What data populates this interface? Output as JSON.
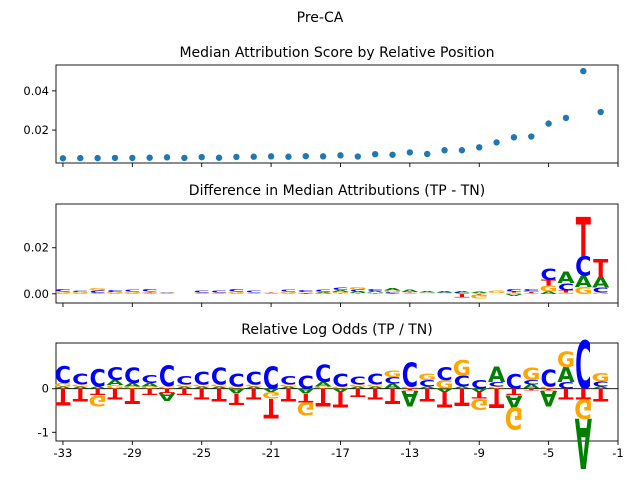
{
  "figure": {
    "suptitle": "Pre-CA"
  },
  "colors": {
    "A": "#008000",
    "C": "#0000ff",
    "G": "#ffa500",
    "T": "#ff0000",
    "point": "#1f77b4"
  },
  "chart_data": [
    {
      "type": "scatter",
      "title": "Median Attribution Score by Relative Position",
      "x": [
        -33,
        -32,
        -31,
        -30,
        -29,
        -28,
        -27,
        -26,
        -25,
        -24,
        -23,
        -22,
        -21,
        -20,
        -19,
        -18,
        -17,
        -16,
        -15,
        -14,
        -13,
        -12,
        -11,
        -10,
        -9,
        -8,
        -7,
        -6,
        -5,
        -4,
        -3,
        -2
      ],
      "values": [
        0.0056,
        0.0057,
        0.0057,
        0.0058,
        0.0058,
        0.0059,
        0.0061,
        0.0058,
        0.0062,
        0.0059,
        0.0063,
        0.0064,
        0.0066,
        0.0064,
        0.0067,
        0.0066,
        0.0071,
        0.0065,
        0.0077,
        0.0074,
        0.0086,
        0.0078,
        0.0097,
        0.0097,
        0.0112,
        0.0137,
        0.0163,
        0.0167,
        0.0233,
        0.0262,
        0.0501,
        0.0292
      ],
      "yticks": [
        0.02,
        0.04
      ],
      "ylim": [
        0.0032,
        0.0532
      ],
      "xlim": [
        -33.4,
        -1
      ]
    },
    {
      "type": "bar",
      "subtype": "sequence-logo",
      "title": "Difference in Median Attributions (TP - TN)",
      "positions": [
        -33,
        -32,
        -31,
        -30,
        -29,
        -28,
        -27,
        -26,
        -25,
        -24,
        -23,
        -22,
        -21,
        -20,
        -19,
        -18,
        -17,
        -16,
        -15,
        -14,
        -13,
        -12,
        -11,
        -10,
        -9,
        -8,
        -7,
        -6,
        -5,
        -4,
        -3,
        -2
      ],
      "series": [
        {
          "name": "A",
          "values": [
            0.0003,
            0.0003,
            0.0003,
            0.0003,
            0.0003,
            0.0003,
            0.0002,
            0.0001,
            0.0002,
            0.0002,
            0.0003,
            0.0003,
            0.0002,
            0.0003,
            0.0003,
            0.0004,
            0.0008,
            0.0008,
            0.0007,
            0.001,
            0.0012,
            0.0004,
            0.0006,
            0.0006,
            0.0004,
            0.0001,
            -0.0008,
            0.0003,
            0.001,
            0.005,
            0.005,
            0.0045
          ]
        },
        {
          "name": "C",
          "values": [
            0.001,
            0.0006,
            0.001,
            0.0008,
            0.0008,
            0.0011,
            0.0003,
            0.0001,
            0.0009,
            0.0009,
            0.001,
            0.0008,
            0.0001,
            0.0009,
            0.0008,
            0.0008,
            0.0011,
            0.0008,
            0.0008,
            0.0006,
            0.0003,
            0.0001,
            0.0003,
            0.0004,
            0.0003,
            0.0001,
            0.0012,
            0.0007,
            0.0052,
            0.0032,
            0.0085,
            0.0022
          ]
        },
        {
          "name": "G",
          "values": [
            0.0005,
            0.0004,
            0.0011,
            0.0004,
            0.0005,
            0.0003,
            0.0002,
            0.0001,
            0.0002,
            0.0002,
            0.0005,
            0.0001,
            0.0001,
            0.0005,
            0.0003,
            0.0005,
            0.0005,
            0.0011,
            0.0002,
            0.0006,
            0.0001,
            0.0003,
            0.0002,
            0.0002,
            -0.0018,
            0.001,
            0.0005,
            0.0006,
            0.0025,
            0.0005,
            0.003,
            0.0005
          ]
        },
        {
          "name": "T",
          "values": [
            0.0001,
            0.0001,
            0.0001,
            0.0001,
            0.0001,
            0.0003,
            0.0001,
            0.0001,
            0.0001,
            0.0001,
            0.0001,
            0.0001,
            0.0002,
            0.0001,
            0.0002,
            0.0001,
            0.0003,
            0.0003,
            0.0003,
            0.0002,
            0.0003,
            0.0001,
            0.0001,
            -0.0015,
            -0.0004,
            0.0001,
            0.0005,
            0.0004,
            0.0025,
            0.001,
            0.017,
            0.008
          ]
        }
      ],
      "yticks": [
        0.0,
        0.02
      ],
      "ylim": [
        -0.004,
        0.039
      ],
      "xlim": [
        -33.4,
        -1
      ]
    },
    {
      "type": "bar",
      "subtype": "sequence-logo",
      "title": "Relative Log Odds (TP / TN)",
      "positions": [
        -33,
        -32,
        -31,
        -30,
        -29,
        -28,
        -27,
        -26,
        -25,
        -24,
        -23,
        -22,
        -21,
        -20,
        -19,
        -18,
        -17,
        -16,
        -15,
        -14,
        -13,
        -12,
        -11,
        -10,
        -9,
        -8,
        -7,
        -6,
        -5,
        -4,
        -3,
        -2
      ],
      "series": [
        {
          "name": "A",
          "values": [
            0.05,
            0.05,
            0.05,
            0.12,
            0.08,
            0.08,
            -0.18,
            0.05,
            0.05,
            0.05,
            -0.12,
            0.05,
            -0.08,
            0.05,
            -0.12,
            0.1,
            -0.08,
            0.05,
            0.05,
            0.12,
            -0.35,
            0.05,
            -0.08,
            0.05,
            -0.08,
            0.35,
            -0.28,
            0.1,
            -0.35,
            0.35,
            -1.15,
            0.05
          ]
        },
        {
          "name": "C",
          "values": [
            0.38,
            0.25,
            0.4,
            0.3,
            0.35,
            0.18,
            0.48,
            0.2,
            0.3,
            0.38,
            0.3,
            0.3,
            0.5,
            0.2,
            0.3,
            0.4,
            0.3,
            0.18,
            0.25,
            0.15,
            0.55,
            0.15,
            0.3,
            0.25,
            0.2,
            0.1,
            0.32,
            0.1,
            0.38,
            0.15,
            1.1,
            0.12
          ]
        },
        {
          "name": "G",
          "values": [
            0.08,
            0.05,
            -0.25,
            0.08,
            0.05,
            0.05,
            0.05,
            0.05,
            0.05,
            0.05,
            0.05,
            0.05,
            -0.15,
            0.05,
            -0.3,
            0.05,
            0.05,
            0.05,
            0.05,
            0.15,
            0.05,
            0.15,
            0.2,
            0.35,
            -0.25,
            0.05,
            -0.5,
            0.28,
            0.05,
            0.35,
            -0.45,
            0.2
          ]
        },
        {
          "name": "T",
          "values": [
            -0.38,
            -0.3,
            -0.15,
            -0.25,
            -0.35,
            -0.15,
            -0.1,
            -0.15,
            -0.25,
            -0.3,
            -0.25,
            -0.25,
            -0.45,
            -0.3,
            -0.2,
            -0.42,
            -0.35,
            -0.2,
            -0.25,
            -0.35,
            -0.05,
            -0.3,
            -0.35,
            -0.4,
            -0.15,
            -0.45,
            -0.15,
            -0.05,
            -0.05,
            -0.25,
            -0.25,
            -0.3
          ]
        }
      ],
      "yticks": [
        -1,
        0
      ],
      "ylim": [
        -1.2,
        1.05
      ],
      "xlim": [
        -33.4,
        -1
      ],
      "xticks": [
        -33,
        -29,
        -25,
        -21,
        -17,
        -13,
        -9,
        -5,
        -1
      ],
      "xtick_labels": [
        "-33",
        "-29",
        "-25",
        "-21",
        "-17",
        "-13",
        "-9",
        "-5",
        "-1"
      ]
    }
  ]
}
